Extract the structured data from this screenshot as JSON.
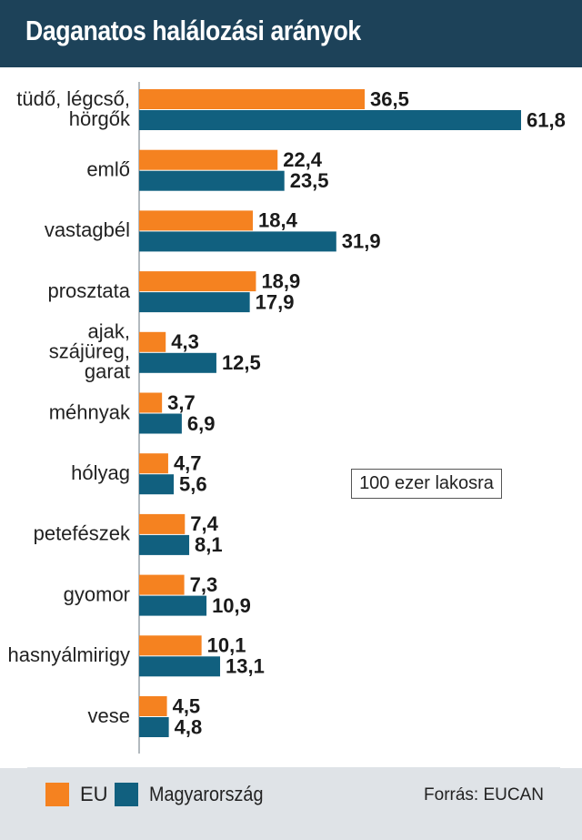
{
  "header": {
    "title": "Daganatos halálozási arányok"
  },
  "chart_data": {
    "type": "bar",
    "orientation": "horizontal",
    "title": "Daganatos halálozási arányok",
    "unit_note": "100 ezer lakosra",
    "categories": [
      [
        "tüdő, légcső,",
        "hörgők"
      ],
      [
        "emlő"
      ],
      [
        "vastagbél"
      ],
      [
        "prosztata"
      ],
      [
        "ajak,",
        "szájüreg,",
        "garat"
      ],
      [
        "méhnyak"
      ],
      [
        "hólyag"
      ],
      [
        "petefészek"
      ],
      [
        "gyomor"
      ],
      [
        "hasnyálmirigy"
      ],
      [
        "vese"
      ]
    ],
    "series": [
      {
        "name": "EU",
        "color": "#f58220",
        "values": [
          36.5,
          22.4,
          18.4,
          18.9,
          4.3,
          3.7,
          4.7,
          7.4,
          7.3,
          10.1,
          4.5
        ],
        "labels": [
          "36,5",
          "22,4",
          "18,4",
          "18,9",
          "4,3",
          "3,7",
          "4,7",
          "7,4",
          "7,3",
          "10,1",
          "4,5"
        ]
      },
      {
        "name": "Magyarország",
        "color": "#11607f",
        "values": [
          61.8,
          23.5,
          31.9,
          17.9,
          12.5,
          6.9,
          5.6,
          8.1,
          10.9,
          13.1,
          4.8
        ],
        "labels": [
          "61,8",
          "23,5",
          "31,9",
          "17,9",
          "12,5",
          "6,9",
          "5,6",
          "8,1",
          "10,9",
          "13,1",
          "4,8"
        ]
      }
    ],
    "xlim": [
      0,
      61.8
    ],
    "grid": false,
    "legend": "bottom"
  },
  "legend": {
    "eu_label": "EU",
    "hu_label": "Magyarország"
  },
  "footer": {
    "source": "Forrás: EUCAN"
  }
}
